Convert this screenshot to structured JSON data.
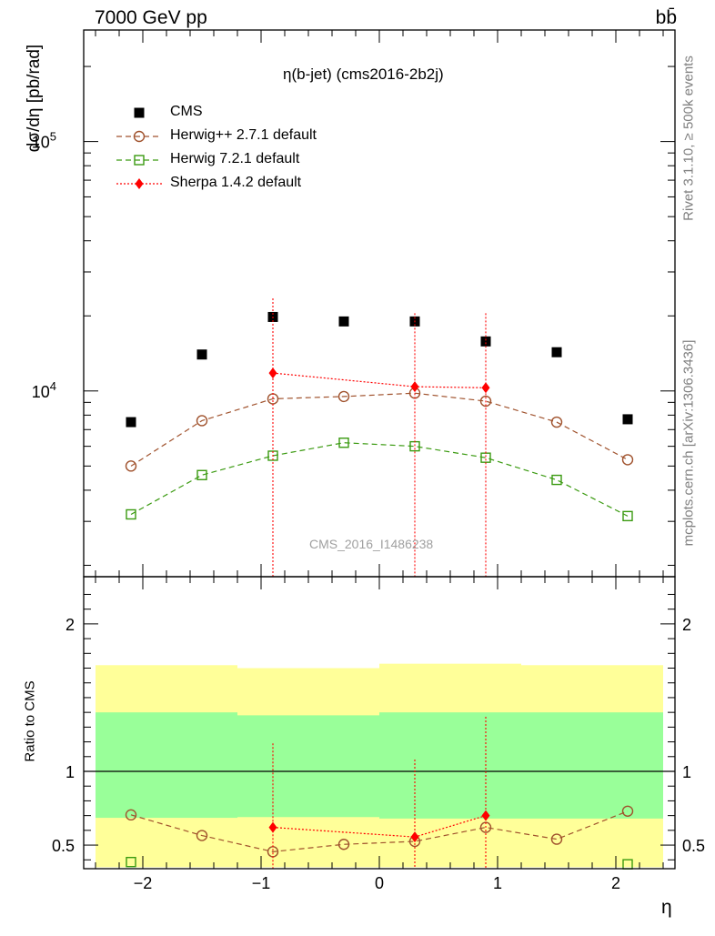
{
  "header": {
    "energy_label": "7000 GeV pp",
    "process_label": "bb̄"
  },
  "side_labels": {
    "rivet": "Rivet 3.1.10, ≥ 500k events",
    "mcplots": "mcplots.cern.ch [arXiv:1306.3436]"
  },
  "colors": {
    "cms": "#000000",
    "herwigpp": "#a0522d",
    "herwig7": "#3a9a10",
    "sherpa": "#ff0000",
    "band_outer": "#ffff99",
    "band_inner": "#99ff99"
  },
  "chart_data": [
    {
      "type": "scatter",
      "title": "η(b-jet) (cms2016-2b2j)",
      "watermark": "CMS_2016_I1486238",
      "xlabel": "η",
      "ylabel": "dσ/dη [pb/rad]",
      "yscale": "log",
      "xlim": [
        -2.5,
        2.5
      ],
      "ylim": [
        1800,
        280000
      ],
      "y_ticks": [
        {
          "value": 10000,
          "base": "10",
          "exp": "4"
        },
        {
          "value": 100000,
          "base": "10",
          "exp": "5"
        }
      ],
      "legend_position": "top-left",
      "series": [
        {
          "name": "CMS",
          "marker": "filled-square",
          "x": [
            -2.1,
            -1.5,
            -0.9,
            -0.3,
            0.3,
            0.9,
            1.5,
            2.1
          ],
          "y": [
            7500,
            14000,
            19800,
            19000,
            19000,
            15800,
            14300,
            7700
          ]
        },
        {
          "name": "Herwig++ 2.7.1 default",
          "marker": "open-circle",
          "line": "dashed",
          "x": [
            -2.1,
            -1.5,
            -0.9,
            -0.3,
            0.3,
            0.9,
            1.5,
            2.1
          ],
          "y": [
            5000,
            7600,
            9300,
            9500,
            9800,
            9100,
            7500,
            5300
          ]
        },
        {
          "name": "Herwig 7.2.1 default",
          "marker": "open-square",
          "line": "dashed",
          "x": [
            -2.1,
            -1.5,
            -0.9,
            -0.3,
            0.3,
            0.9,
            1.5,
            2.1
          ],
          "y": [
            3200,
            4600,
            5500,
            6200,
            6000,
            5400,
            4400,
            3150
          ]
        },
        {
          "name": "Sherpa 1.4.2 default",
          "marker": "filled-diamond",
          "line": "dotted",
          "x": [
            -0.9,
            0.3,
            0.9
          ],
          "y": [
            11800,
            10400,
            10300
          ],
          "err_up": [
            23500,
            20500,
            20500
          ],
          "err_down": [
            1500,
            1500,
            1500
          ]
        }
      ]
    },
    {
      "type": "scatter",
      "xlabel": "η",
      "ylabel": "Ratio to CMS",
      "xlim": [
        -2.5,
        2.5
      ],
      "ylim": [
        0.34,
        2.32
      ],
      "x_ticks": [
        -2,
        -1,
        0,
        1,
        2
      ],
      "x_tick_labels": [
        "−2",
        "−1",
        "0",
        "1",
        "2"
      ],
      "y_ticks": [
        0.5,
        1,
        2
      ],
      "y_tick_labels": [
        "0.5",
        "1",
        "2"
      ],
      "bands": {
        "edges": [
          -2.4,
          -1.2,
          0.0,
          1.2,
          2.4
        ],
        "outer_low": [
          0.35,
          0.35,
          0.35,
          0.35
        ],
        "outer_high": [
          1.72,
          1.7,
          1.73,
          1.72
        ],
        "inner_low": [
          0.685,
          0.69,
          0.68,
          0.68
        ],
        "inner_high": [
          1.4,
          1.38,
          1.4,
          1.4
        ]
      },
      "series": [
        {
          "name": "Herwig++ 2.7.1 default",
          "marker": "open-circle",
          "line": "dashed",
          "x": [
            -2.1,
            -1.5,
            -0.9,
            -0.3,
            0.3,
            0.9,
            1.5,
            2.1
          ],
          "y": [
            0.705,
            0.565,
            0.455,
            0.505,
            0.525,
            0.62,
            0.54,
            0.73
          ]
        },
        {
          "name": "Herwig 7.2.1 default",
          "marker": "open-square",
          "line": "dashed",
          "x": [
            -2.1,
            2.1
          ],
          "y": [
            0.385,
            0.37
          ]
        },
        {
          "name": "Sherpa 1.4.2 default",
          "marker": "filled-diamond",
          "line": "dotted",
          "x": [
            -0.9,
            0.3,
            0.9
          ],
          "y": [
            0.62,
            0.555,
            0.7
          ],
          "err_up": [
            1.19,
            1.08,
            1.37
          ],
          "err_down": [
            0.34,
            0.34,
            0.34
          ]
        }
      ]
    }
  ]
}
